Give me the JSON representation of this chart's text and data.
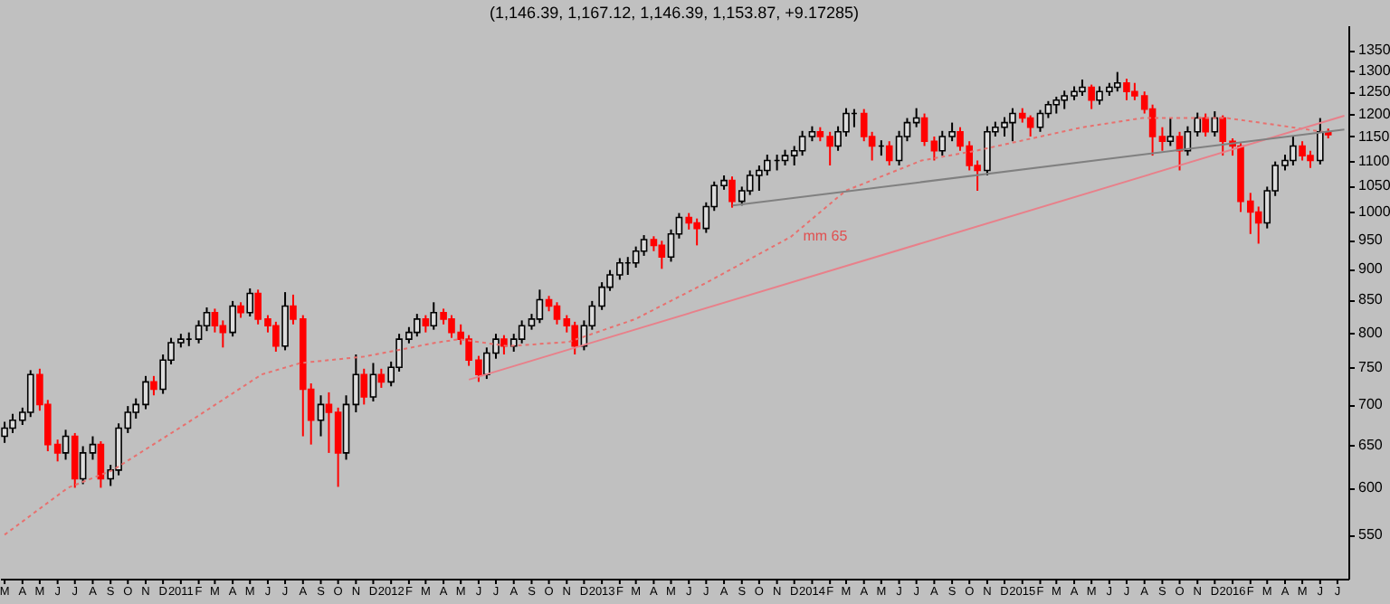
{
  "chart_data": {
    "type": "candlestick",
    "title": "(1,146.39, 1,167.12, 1,146.39, 1,153.87, +9.17285)",
    "log": true,
    "xlim": [
      "2010-02-21",
      "2016-07-20"
    ],
    "ylim": [
      507,
      1413
    ],
    "yticks": [
      550,
      600,
      650,
      700,
      750,
      800,
      850,
      900,
      950,
      1000,
      1050,
      1100,
      1150,
      1200,
      1250,
      1300,
      1350
    ],
    "xticks": [
      {
        "value": "2010-03-01",
        "label": "M"
      },
      {
        "value": "2010-04-01",
        "label": "A"
      },
      {
        "value": "2010-05-01",
        "label": "M"
      },
      {
        "value": "2010-06-01",
        "label": "J"
      },
      {
        "value": "2010-07-01",
        "label": "J"
      },
      {
        "value": "2010-08-01",
        "label": "A"
      },
      {
        "value": "2010-09-01",
        "label": "S"
      },
      {
        "value": "2010-10-01",
        "label": "O"
      },
      {
        "value": "2010-11-01",
        "label": "N"
      },
      {
        "value": "2010-12-01",
        "label": "D"
      },
      "2011",
      {
        "value": "2011-02-01",
        "label": "F"
      },
      {
        "value": "2011-03-01",
        "label": "M"
      },
      {
        "value": "2011-04-01",
        "label": "A"
      },
      {
        "value": "2011-05-01",
        "label": "M"
      },
      {
        "value": "2011-06-01",
        "label": "J"
      },
      {
        "value": "2011-07-01",
        "label": "J"
      },
      {
        "value": "2011-08-01",
        "label": "A"
      },
      {
        "value": "2011-09-01",
        "label": "S"
      },
      {
        "value": "2011-10-01",
        "label": "O"
      },
      {
        "value": "2011-11-01",
        "label": "N"
      },
      {
        "value": "2011-12-01",
        "label": "D"
      },
      "2012",
      {
        "value": "2012-02-01",
        "label": "F"
      },
      {
        "value": "2012-03-01",
        "label": "M"
      },
      {
        "value": "2012-04-01",
        "label": "A"
      },
      {
        "value": "2012-05-01",
        "label": "M"
      },
      {
        "value": "2012-06-01",
        "label": "J"
      },
      {
        "value": "2012-07-01",
        "label": "J"
      },
      {
        "value": "2012-08-01",
        "label": "A"
      },
      {
        "value": "2012-09-01",
        "label": "S"
      },
      {
        "value": "2012-10-01",
        "label": "O"
      },
      {
        "value": "2012-11-01",
        "label": "N"
      },
      {
        "value": "2012-12-01",
        "label": "D"
      },
      "2013",
      {
        "value": "2013-02-01",
        "label": "F"
      },
      {
        "value": "2013-03-01",
        "label": "M"
      },
      {
        "value": "2013-04-01",
        "label": "A"
      },
      {
        "value": "2013-05-01",
        "label": "M"
      },
      {
        "value": "2013-06-01",
        "label": "J"
      },
      {
        "value": "2013-07-01",
        "label": "J"
      },
      {
        "value": "2013-08-01",
        "label": "A"
      },
      {
        "value": "2013-09-01",
        "label": "S"
      },
      {
        "value": "2013-10-01",
        "label": "O"
      },
      {
        "value": "2013-11-01",
        "label": "N"
      },
      {
        "value": "2013-12-01",
        "label": "D"
      },
      "2014",
      {
        "value": "2014-02-01",
        "label": "F"
      },
      {
        "value": "2014-03-01",
        "label": "M"
      },
      {
        "value": "2014-04-01",
        "label": "A"
      },
      {
        "value": "2014-05-01",
        "label": "M"
      },
      {
        "value": "2014-06-01",
        "label": "J"
      },
      {
        "value": "2014-07-01",
        "label": "J"
      },
      {
        "value": "2014-08-01",
        "label": "A"
      },
      {
        "value": "2014-09-01",
        "label": "S"
      },
      {
        "value": "2014-10-01",
        "label": "O"
      },
      {
        "value": "2014-11-01",
        "label": "N"
      },
      {
        "value": "2014-12-01",
        "label": "D"
      },
      "2015",
      {
        "value": "2015-02-01",
        "label": "F"
      },
      {
        "value": "2015-03-01",
        "label": "M"
      },
      {
        "value": "2015-04-01",
        "label": "A"
      },
      {
        "value": "2015-05-01",
        "label": "M"
      },
      {
        "value": "2015-06-01",
        "label": "J"
      },
      {
        "value": "2015-07-01",
        "label": "J"
      },
      {
        "value": "2015-08-01",
        "label": "A"
      },
      {
        "value": "2015-09-01",
        "label": "S"
      },
      {
        "value": "2015-10-01",
        "label": "O"
      },
      {
        "value": "2015-11-01",
        "label": "N"
      },
      {
        "value": "2015-12-01",
        "label": "D"
      },
      "2016",
      {
        "value": "2016-02-01",
        "label": "F"
      },
      {
        "value": "2016-03-01",
        "label": "M"
      },
      {
        "value": "2016-04-01",
        "label": "A"
      },
      {
        "value": "2016-05-01",
        "label": "M"
      },
      {
        "value": "2016-06-01",
        "label": "J"
      },
      {
        "value": "2016-07-01",
        "label": "J"
      }
    ],
    "x": [
      "2010-03-01",
      "2010-03-15",
      "2010-04-01",
      "2010-04-15",
      "2010-05-01",
      "2010-05-15",
      "2010-06-01",
      "2010-06-15",
      "2010-07-01",
      "2010-07-15",
      "2010-08-01",
      "2010-08-15",
      "2010-09-01",
      "2010-09-15",
      "2010-10-01",
      "2010-10-15",
      "2010-11-01",
      "2010-11-15",
      "2010-12-01",
      "2010-12-15",
      "2011-01-01",
      "2011-01-15",
      "2011-02-01",
      "2011-02-15",
      "2011-03-01",
      "2011-03-15",
      "2011-04-01",
      "2011-04-15",
      "2011-05-01",
      "2011-05-15",
      "2011-06-01",
      "2011-06-15",
      "2011-07-01",
      "2011-07-15",
      "2011-08-01",
      "2011-08-15",
      "2011-09-01",
      "2011-09-15",
      "2011-10-01",
      "2011-10-15",
      "2011-11-01",
      "2011-11-15",
      "2011-12-01",
      "2011-12-15",
      "2012-01-01",
      "2012-01-15",
      "2012-02-01",
      "2012-02-15",
      "2012-03-01",
      "2012-03-15",
      "2012-04-01",
      "2012-04-15",
      "2012-05-01",
      "2012-05-15",
      "2012-06-01",
      "2012-06-15",
      "2012-07-01",
      "2012-07-15",
      "2012-08-01",
      "2012-08-15",
      "2012-09-01",
      "2012-09-15",
      "2012-10-01",
      "2012-10-15",
      "2012-11-01",
      "2012-11-15",
      "2012-12-01",
      "2012-12-15",
      "2013-01-01",
      "2013-01-15",
      "2013-02-01",
      "2013-02-15",
      "2013-03-01",
      "2013-03-15",
      "2013-04-01",
      "2013-04-15",
      "2013-05-01",
      "2013-05-15",
      "2013-06-01",
      "2013-06-15",
      "2013-07-01",
      "2013-07-15",
      "2013-08-01",
      "2013-08-15",
      "2013-09-01",
      "2013-09-15",
      "2013-10-01",
      "2013-10-15",
      "2013-11-01",
      "2013-11-15",
      "2013-12-01",
      "2013-12-15",
      "2014-01-01",
      "2014-01-15",
      "2014-02-01",
      "2014-02-15",
      "2014-03-01",
      "2014-03-15",
      "2014-04-01",
      "2014-04-15",
      "2014-05-01",
      "2014-05-15",
      "2014-06-01",
      "2014-06-15",
      "2014-07-01",
      "2014-07-15",
      "2014-08-01",
      "2014-08-15",
      "2014-09-01",
      "2014-09-15",
      "2014-10-01",
      "2014-10-15",
      "2014-11-01",
      "2014-11-15",
      "2014-12-01",
      "2014-12-15",
      "2015-01-01",
      "2015-01-15",
      "2015-02-01",
      "2015-02-15",
      "2015-03-01",
      "2015-03-15",
      "2015-04-01",
      "2015-04-15",
      "2015-05-01",
      "2015-05-15",
      "2015-06-01",
      "2015-06-15",
      "2015-07-01",
      "2015-07-15",
      "2015-08-01",
      "2015-08-15",
      "2015-09-01",
      "2015-09-15",
      "2015-10-01",
      "2015-10-15",
      "2015-11-01",
      "2015-11-15",
      "2015-12-01",
      "2015-12-15",
      "2016-01-01",
      "2016-01-15",
      "2016-02-01",
      "2016-02-15",
      "2016-03-01",
      "2016-03-15",
      "2016-04-01",
      "2016-04-15",
      "2016-05-01",
      "2016-05-15",
      "2016-06-01",
      "2016-06-15"
    ],
    "ohlc": [
      [
        660,
        678,
        652,
        670
      ],
      [
        670,
        688,
        664,
        680
      ],
      [
        680,
        696,
        674,
        690
      ],
      [
        690,
        746,
        684,
        740
      ],
      [
        740,
        748,
        692,
        700
      ],
      [
        700,
        706,
        642,
        650
      ],
      [
        650,
        656,
        630,
        640
      ],
      [
        640,
        668,
        632,
        660
      ],
      [
        660,
        664,
        600,
        610
      ],
      [
        610,
        648,
        604,
        640
      ],
      [
        640,
        660,
        632,
        650
      ],
      [
        650,
        654,
        600,
        610
      ],
      [
        610,
        626,
        602,
        620
      ],
      [
        620,
        676,
        614,
        670
      ],
      [
        670,
        698,
        664,
        690
      ],
      [
        690,
        708,
        682,
        700
      ],
      [
        700,
        738,
        694,
        730
      ],
      [
        730,
        738,
        712,
        720
      ],
      [
        720,
        768,
        714,
        760
      ],
      [
        760,
        792,
        754,
        785
      ],
      [
        785,
        798,
        778,
        790
      ],
      [
        790,
        800,
        780,
        790
      ],
      [
        790,
        818,
        784,
        810
      ],
      [
        810,
        838,
        802,
        830
      ],
      [
        830,
        836,
        800,
        810
      ],
      [
        810,
        818,
        778,
        800
      ],
      [
        800,
        848,
        794,
        840
      ],
      [
        840,
        846,
        822,
        830
      ],
      [
        830,
        868,
        824,
        860
      ],
      [
        860,
        866,
        812,
        820
      ],
      [
        820,
        826,
        800,
        810
      ],
      [
        810,
        816,
        772,
        780
      ],
      [
        780,
        862,
        774,
        840
      ],
      [
        840,
        858,
        812,
        820
      ],
      [
        820,
        826,
        660,
        720
      ],
      [
        720,
        728,
        650,
        680
      ],
      [
        680,
        712,
        660,
        700
      ],
      [
        700,
        716,
        640,
        690
      ],
      [
        690,
        696,
        601,
        640
      ],
      [
        640,
        712,
        632,
        700
      ],
      [
        700,
        768,
        690,
        740
      ],
      [
        740,
        748,
        700,
        710
      ],
      [
        710,
        756,
        704,
        740
      ],
      [
        740,
        748,
        722,
        730
      ],
      [
        730,
        758,
        724,
        750
      ],
      [
        750,
        798,
        744,
        790
      ],
      [
        790,
        808,
        784,
        800
      ],
      [
        800,
        828,
        794,
        820
      ],
      [
        820,
        826,
        800,
        810
      ],
      [
        810,
        846,
        804,
        830
      ],
      [
        830,
        836,
        812,
        820
      ],
      [
        820,
        826,
        792,
        800
      ],
      [
        800,
        812,
        782,
        790
      ],
      [
        790,
        796,
        752,
        760
      ],
      [
        760,
        766,
        730,
        740
      ],
      [
        740,
        778,
        734,
        770
      ],
      [
        770,
        798,
        762,
        790
      ],
      [
        790,
        796,
        768,
        780
      ],
      [
        780,
        798,
        772,
        790
      ],
      [
        790,
        818,
        784,
        810
      ],
      [
        810,
        828,
        804,
        820
      ],
      [
        820,
        866,
        814,
        850
      ],
      [
        850,
        856,
        832,
        840
      ],
      [
        840,
        846,
        812,
        820
      ],
      [
        820,
        826,
        800,
        810
      ],
      [
        810,
        816,
        768,
        780
      ],
      [
        780,
        818,
        774,
        810
      ],
      [
        810,
        848,
        804,
        840
      ],
      [
        840,
        878,
        834,
        870
      ],
      [
        870,
        898,
        864,
        890
      ],
      [
        890,
        918,
        882,
        910
      ],
      [
        910,
        920,
        890,
        910
      ],
      [
        910,
        938,
        902,
        930
      ],
      [
        930,
        958,
        922,
        950
      ],
      [
        950,
        956,
        930,
        940
      ],
      [
        940,
        948,
        900,
        920
      ],
      [
        920,
        968,
        912,
        960
      ],
      [
        960,
        998,
        952,
        990
      ],
      [
        990,
        998,
        968,
        980
      ],
      [
        980,
        988,
        940,
        970
      ],
      [
        970,
        1018,
        962,
        1010
      ],
      [
        1010,
        1058,
        1002,
        1050
      ],
      [
        1050,
        1070,
        1042,
        1060
      ],
      [
        1060,
        1068,
        1008,
        1020
      ],
      [
        1020,
        1048,
        1012,
        1040
      ],
      [
        1040,
        1080,
        1032,
        1070
      ],
      [
        1070,
        1090,
        1040,
        1080
      ],
      [
        1080,
        1112,
        1070,
        1100
      ],
      [
        1100,
        1112,
        1080,
        1100
      ],
      [
        1100,
        1122,
        1090,
        1110
      ],
      [
        1110,
        1130,
        1090,
        1120
      ],
      [
        1120,
        1162,
        1110,
        1150
      ],
      [
        1150,
        1172,
        1140,
        1160
      ],
      [
        1160,
        1170,
        1140,
        1150
      ],
      [
        1150,
        1160,
        1090,
        1130
      ],
      [
        1130,
        1172,
        1120,
        1160
      ],
      [
        1160,
        1212,
        1150,
        1200
      ],
      [
        1200,
        1210,
        1170,
        1200
      ],
      [
        1200,
        1210,
        1140,
        1150
      ],
      [
        1150,
        1160,
        1100,
        1130
      ],
      [
        1130,
        1142,
        1110,
        1130
      ],
      [
        1130,
        1140,
        1090,
        1100
      ],
      [
        1100,
        1162,
        1090,
        1150
      ],
      [
        1150,
        1190,
        1140,
        1180
      ],
      [
        1180,
        1212,
        1170,
        1190
      ],
      [
        1190,
        1200,
        1130,
        1140
      ],
      [
        1140,
        1150,
        1100,
        1120
      ],
      [
        1120,
        1162,
        1110,
        1150
      ],
      [
        1150,
        1180,
        1140,
        1160
      ],
      [
        1160,
        1170,
        1120,
        1130
      ],
      [
        1130,
        1140,
        1080,
        1090
      ],
      [
        1090,
        1100,
        1040,
        1080
      ],
      [
        1080,
        1172,
        1070,
        1160
      ],
      [
        1160,
        1182,
        1150,
        1170
      ],
      [
        1170,
        1192,
        1150,
        1180
      ],
      [
        1180,
        1212,
        1140,
        1200
      ],
      [
        1200,
        1212,
        1180,
        1190
      ],
      [
        1190,
        1196,
        1150,
        1170
      ],
      [
        1170,
        1208,
        1160,
        1200
      ],
      [
        1200,
        1228,
        1190,
        1220
      ],
      [
        1220,
        1238,
        1200,
        1230
      ],
      [
        1230,
        1252,
        1210,
        1240
      ],
      [
        1240,
        1262,
        1230,
        1250
      ],
      [
        1250,
        1278,
        1240,
        1260
      ],
      [
        1260,
        1266,
        1210,
        1230
      ],
      [
        1230,
        1262,
        1220,
        1250
      ],
      [
        1250,
        1270,
        1240,
        1260
      ],
      [
        1260,
        1296,
        1250,
        1270
      ],
      [
        1270,
        1280,
        1230,
        1250
      ],
      [
        1250,
        1270,
        1230,
        1240
      ],
      [
        1240,
        1250,
        1200,
        1210
      ],
      [
        1210,
        1220,
        1110,
        1150
      ],
      [
        1150,
        1170,
        1120,
        1140
      ],
      [
        1140,
        1190,
        1130,
        1150
      ],
      [
        1150,
        1160,
        1080,
        1120
      ],
      [
        1120,
        1172,
        1110,
        1160
      ],
      [
        1160,
        1202,
        1150,
        1190
      ],
      [
        1190,
        1200,
        1150,
        1160
      ],
      [
        1160,
        1205,
        1150,
        1190
      ],
      [
        1190,
        1196,
        1110,
        1140
      ],
      [
        1140,
        1146,
        1110,
        1130
      ],
      [
        1130,
        1136,
        1000,
        1020
      ],
      [
        1020,
        1036,
        960,
        1000
      ],
      [
        1000,
        1010,
        943,
        980
      ],
      [
        980,
        1048,
        970,
        1040
      ],
      [
        1040,
        1098,
        1030,
        1090
      ],
      [
        1090,
        1112,
        1080,
        1100
      ],
      [
        1100,
        1150,
        1090,
        1130
      ],
      [
        1130,
        1140,
        1100,
        1110
      ],
      [
        1110,
        1120,
        1085,
        1100
      ],
      [
        1100,
        1190,
        1092,
        1160
      ],
      [
        1160,
        1167,
        1146,
        1154
      ]
    ],
    "colors": [
      "#dcdcdc",
      "#dcdcdc",
      "#dcdcdc",
      "#dcdcdc",
      "#ff0000",
      "#ff0000",
      "#ff0000",
      "#dcdcdc",
      "#ff0000",
      "#dcdcdc",
      "#dcdcdc",
      "#ff0000",
      "#dcdcdc",
      "#dcdcdc",
      "#dcdcdc",
      "#dcdcdc",
      "#dcdcdc",
      "#ff0000",
      "#dcdcdc",
      "#dcdcdc",
      "#dcdcdc",
      "#000000",
      "#dcdcdc",
      "#dcdcdc",
      "#ff0000",
      "#ff0000",
      "#dcdcdc",
      "#ff0000",
      "#dcdcdc",
      "#ff0000",
      "#ff0000",
      "#ff0000",
      "#dcdcdc",
      "#ff0000",
      "#ff0000",
      "#ff0000",
      "#dcdcdc",
      "#ff0000",
      "#ff0000",
      "#dcdcdc",
      "#dcdcdc",
      "#ff0000",
      "#dcdcdc",
      "#ff0000",
      "#dcdcdc",
      "#dcdcdc",
      "#dcdcdc",
      "#dcdcdc",
      "#ff0000",
      "#dcdcdc",
      "#ff0000",
      "#ff0000",
      "#ff0000",
      "#ff0000",
      "#ff0000",
      "#dcdcdc",
      "#dcdcdc",
      "#ff0000",
      "#dcdcdc",
      "#dcdcdc",
      "#dcdcdc",
      "#dcdcdc",
      "#ff0000",
      "#ff0000",
      "#ff0000",
      "#ff0000",
      "#dcdcdc",
      "#dcdcdc",
      "#dcdcdc",
      "#dcdcdc",
      "#dcdcdc",
      "#000000",
      "#dcdcdc",
      "#dcdcdc",
      "#ff0000",
      "#ff0000",
      "#dcdcdc",
      "#dcdcdc",
      "#ff0000",
      "#ff0000",
      "#dcdcdc",
      "#dcdcdc",
      "#dcdcdc",
      "#ff0000",
      "#dcdcdc",
      "#dcdcdc",
      "#dcdcdc",
      "#dcdcdc",
      "#000000",
      "#dcdcdc",
      "#dcdcdc",
      "#dcdcdc",
      "#dcdcdc",
      "#ff0000",
      "#ff0000",
      "#dcdcdc",
      "#dcdcdc",
      "#000000",
      "#ff0000",
      "#ff0000",
      "#000000",
      "#ff0000",
      "#dcdcdc",
      "#dcdcdc",
      "#dcdcdc",
      "#ff0000",
      "#ff0000",
      "#dcdcdc",
      "#dcdcdc",
      "#ff0000",
      "#ff0000",
      "#ff0000",
      "#dcdcdc",
      "#dcdcdc",
      "#dcdcdc",
      "#dcdcdc",
      "#ff0000",
      "#ff0000",
      "#dcdcdc",
      "#dcdcdc",
      "#dcdcdc",
      "#dcdcdc",
      "#dcdcdc",
      "#dcdcdc",
      "#ff0000",
      "#dcdcdc",
      "#dcdcdc",
      "#dcdcdc",
      "#ff0000",
      "#ff0000",
      "#ff0000",
      "#ff0000",
      "#ff0000",
      "#dcdcdc",
      "#ff0000",
      "#dcdcdc",
      "#dcdcdc",
      "#ff0000",
      "#dcdcdc",
      "#ff0000",
      "#ff0000",
      "#ff0000",
      "#ff0000",
      "#ff0000",
      "#dcdcdc",
      "#dcdcdc",
      "#dcdcdc",
      "#dcdcdc",
      "#ff0000",
      "#ff0000",
      "#dcdcdc",
      "#ff0000"
    ],
    "series": [
      {
        "type": "line",
        "color": "#e8706e",
        "line_style": "dotted",
        "x": [
          "2010-03-01",
          "2010-06-19",
          "2010-09-05",
          "2011-01-09",
          "2011-05-21",
          "2011-07-28",
          "2011-11-16",
          "2012-03-19",
          "2012-04-28",
          "2012-07-22",
          "2012-11-04",
          "2013-02-28",
          "2013-07-01",
          "2013-11-25",
          "2014-02-28",
          "2014-07-10",
          "2014-10-12",
          "2015-04-16",
          "2015-07-28",
          "2015-12-22",
          "2016-03-16",
          "2016-06-06"
        ],
        "values": [
          550,
          600,
          620,
          675,
          740,
          756,
          765,
          785,
          790,
          780,
          786,
          820,
          877,
          955,
          1040,
          1100,
          1120,
          1170,
          1190,
          1190,
          1175,
          1160
        ]
      },
      {
        "type": "line",
        "color": "#e8808a",
        "line_style": "solid",
        "x": [
          "2012-05-15",
          "2016-07-13"
        ],
        "values": [
          733,
          1195
        ]
      },
      {
        "type": "line",
        "color": "#808080",
        "line_style": "solid",
        "x": [
          "2013-08-16",
          "2016-07-13"
        ],
        "values": [
          1012,
          1165
        ]
      }
    ],
    "annotations": [
      {
        "text": "mm 65",
        "x": "2013-12-10",
        "y": 955
      }
    ]
  }
}
